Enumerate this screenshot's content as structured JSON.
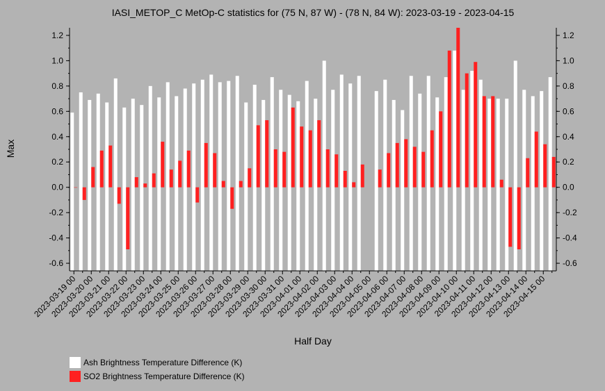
{
  "chart_data": {
    "type": "bar",
    "title": "IASI_METOP_C MetOp-C statistics for (75 N, 87 W) - (78 N, 84 W): 2023-03-19 - 2023-04-15",
    "xlabel": "Half Day",
    "ylabel": "Max",
    "ylim": [
      -0.66,
      1.26
    ],
    "yticks": [
      -0.6,
      -0.4,
      -0.2,
      0.0,
      0.2,
      0.4,
      0.6,
      0.8,
      1.0,
      1.2
    ],
    "ytick_labels": [
      "-0.6",
      "-0.4",
      "-0.2",
      "0.0",
      "0.2",
      "0.4",
      "0.6",
      "0.8",
      "1.0",
      "1.2"
    ],
    "xtick_labels": [
      "2023-03-19 00",
      "2023-03-20 00",
      "2023-03-21 00",
      "2023-03-22 00",
      "2023-03-23 00",
      "2023-03-24 00",
      "2023-03-25 00",
      "2023-03-26 00",
      "2023-03-27 00",
      "2023-03-28 00",
      "2023-03-29 00",
      "2023-03-30 00",
      "2023-03-31 00",
      "2023-04-01 00",
      "2023-04-02 00",
      "2023-04-03 00",
      "2023-04-04 00",
      "2023-04-05 00",
      "2023-04-06 00",
      "2023-04-07 00",
      "2023-04-08 00",
      "2023-04-09 00",
      "2023-04-10 00",
      "2023-04-11 00",
      "2023-04-12 00",
      "2023-04-13 00",
      "2023-04-14 00",
      "2023-04-15 00"
    ],
    "legend_position": "bottom-left",
    "series": [
      {
        "name": "Ash Brightness Temperature Difference (K)",
        "color": "#ffffff",
        "values": [
          0.59,
          0.75,
          0.69,
          0.74,
          0.67,
          0.86,
          0.63,
          0.7,
          0.65,
          0.8,
          0.71,
          0.83,
          0.72,
          0.78,
          0.82,
          0.85,
          0.89,
          0.83,
          0.84,
          0.88,
          0.67,
          0.81,
          0.69,
          0.87,
          0.77,
          0.73,
          0.68,
          0.84,
          0.7,
          1.0,
          0.77,
          0.89,
          0.82,
          0.88,
          null,
          0.76,
          0.85,
          0.69,
          0.61,
          0.88,
          0.74,
          0.88,
          0.71,
          0.87,
          1.08,
          0.77,
          0.92,
          0.85,
          0.7,
          0.7,
          0.7,
          1.0,
          0.77,
          0.72,
          0.76,
          0.87
        ]
      },
      {
        "name": "SO2 Brightness Temperature Difference (K)",
        "color": "#ff2020",
        "values": [
          0.0,
          -0.1,
          0.16,
          0.29,
          0.33,
          -0.13,
          -0.49,
          0.08,
          0.03,
          0.11,
          0.36,
          0.14,
          0.21,
          0.29,
          -0.12,
          0.35,
          0.27,
          0.05,
          -0.17,
          0.05,
          0.15,
          0.49,
          0.53,
          0.3,
          0.28,
          0.63,
          0.48,
          0.45,
          0.53,
          0.3,
          0.26,
          0.13,
          0.04,
          0.18,
          null,
          0.14,
          0.27,
          0.35,
          0.38,
          0.32,
          0.28,
          0.45,
          0.6,
          1.08,
          1.26,
          0.9,
          0.99,
          0.72,
          0.72,
          0.06,
          -0.47,
          -0.49,
          0.23,
          0.44,
          0.34,
          0.24
        ]
      }
    ]
  }
}
